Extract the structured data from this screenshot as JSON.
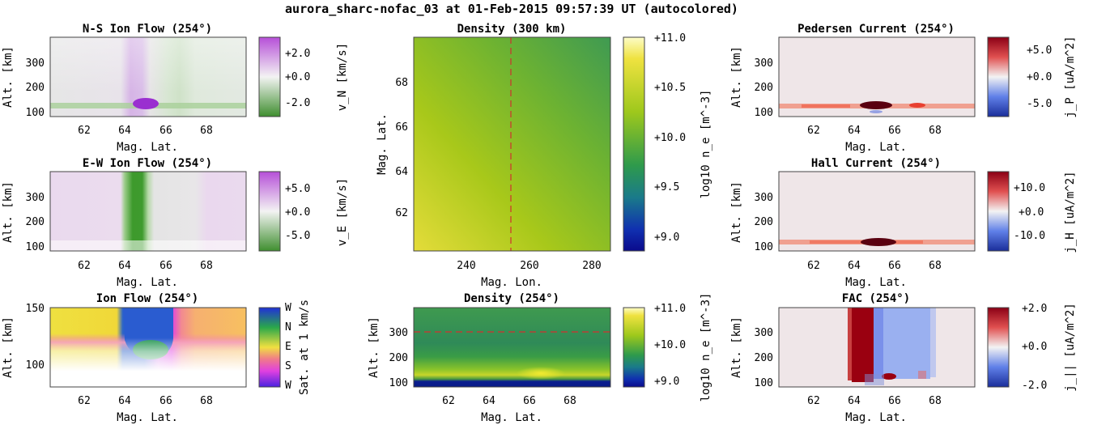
{
  "figure": {
    "title": "aurora_sharc-nofac_03 at 01-Feb-2015 09:57:39 UT (autocolored)"
  },
  "colors": {
    "green": "#3f8f2f",
    "purple": "#b64fd8",
    "red": "#b40426",
    "blue": "#3b4cc0",
    "axis": "#444444"
  },
  "chart_data": [
    {
      "id": "ns_flow",
      "type": "heatmap",
      "title": "N-S Ion Flow (254°)",
      "xlabel": "Mag. Lat.",
      "ylabel": "Alt. [km]",
      "xticks": [
        "62",
        "64",
        "66",
        "68"
      ],
      "yticks": [
        "100",
        "200",
        "300"
      ],
      "colorbar": {
        "label": "v_N [km/s]",
        "ticks": [
          "+2.0",
          "+0.0",
          "-2.0"
        ],
        "colormap": "purple-green"
      }
    },
    {
      "id": "ew_flow",
      "type": "heatmap",
      "title": "E-W Ion Flow (254°)",
      "xlabel": "Mag. Lat.",
      "ylabel": "Alt. [km]",
      "xticks": [
        "62",
        "64",
        "66",
        "68"
      ],
      "yticks": [
        "100",
        "200",
        "300"
      ],
      "colorbar": {
        "label": "v_E [km/s]",
        "ticks": [
          "+5.0",
          "+0.0",
          "-5.0"
        ],
        "colormap": "purple-green"
      }
    },
    {
      "id": "ion_flow",
      "type": "heatmap",
      "title": "Ion Flow (254°)",
      "xlabel": "Mag. Lat.",
      "ylabel": "Alt. [km]",
      "xticks": [
        "62",
        "64",
        "66",
        "68"
      ],
      "yticks": [
        "100",
        "150"
      ],
      "colorbar": {
        "label": "Sat. at 1 km/s",
        "ticks": [
          "W",
          "N",
          "E",
          "S",
          "W"
        ],
        "colormap": "direction-wheel"
      }
    },
    {
      "id": "density_300",
      "type": "heatmap",
      "title": "Density (300 km)",
      "xlabel": "Mag. Lon.",
      "ylabel": "Mag. Lat.",
      "xticks": [
        "240",
        "260",
        "280"
      ],
      "yticks": [
        "62",
        "64",
        "66",
        "68"
      ],
      "marker": {
        "orientation": "vertical",
        "value": 254
      },
      "colorbar": {
        "label": "log10 n_e [m^-3]",
        "ticks": [
          "+11.0",
          "+10.5",
          "+10.0",
          "+9.5",
          "+9.0"
        ],
        "colormap": "blue-green-yellow"
      }
    },
    {
      "id": "density_254",
      "type": "heatmap",
      "title": "Density (254°)",
      "xlabel": "Mag. Lat.",
      "ylabel": "Alt. [km]",
      "xticks": [
        "62",
        "64",
        "66",
        "68"
      ],
      "yticks": [
        "100",
        "200",
        "300"
      ],
      "marker": {
        "orientation": "horizontal",
        "value": 300
      },
      "colorbar": {
        "label": "log10 n_e [m^-3]",
        "ticks": [
          "+11.0",
          "+10.0",
          "+9.0"
        ],
        "colormap": "blue-green-yellow"
      }
    },
    {
      "id": "pedersen",
      "type": "heatmap",
      "title": "Pedersen Current (254°)",
      "xlabel": "Mag. Lat.",
      "ylabel": "Alt. [km]",
      "xticks": [
        "62",
        "64",
        "66",
        "68"
      ],
      "yticks": [
        "100",
        "200",
        "300"
      ],
      "colorbar": {
        "label": "j_P [uA/m^2]",
        "ticks": [
          "+5.0",
          "+0.0",
          "-5.0"
        ],
        "colormap": "red-blue"
      }
    },
    {
      "id": "hall",
      "type": "heatmap",
      "title": "Hall Current (254°)",
      "xlabel": "Mag. Lat.",
      "ylabel": "Alt. [km]",
      "xticks": [
        "62",
        "64",
        "66",
        "68"
      ],
      "yticks": [
        "100",
        "200",
        "300"
      ],
      "colorbar": {
        "label": "j_H [uA/m^2]",
        "ticks": [
          "+10.0",
          "+0.0",
          "-10.0"
        ],
        "colormap": "red-blue"
      }
    },
    {
      "id": "fac",
      "type": "heatmap",
      "title": "FAC (254°)",
      "xlabel": "Mag. Lat.",
      "ylabel": "Alt. [km]",
      "xticks": [
        "62",
        "64",
        "66",
        "68"
      ],
      "yticks": [
        "100",
        "200",
        "300"
      ],
      "colorbar": {
        "label": "j_|| [uA/m^2]",
        "ticks": [
          "+2.0",
          "+0.0",
          "-2.0"
        ],
        "colormap": "red-blue"
      }
    }
  ]
}
